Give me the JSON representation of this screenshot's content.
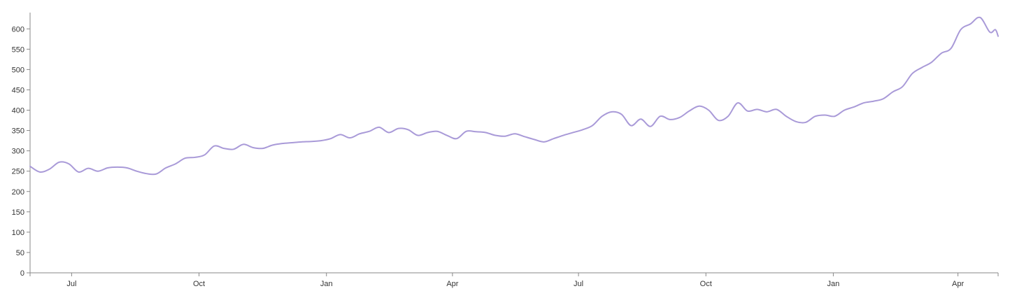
{
  "chart_data": {
    "type": "line",
    "title": "",
    "xlabel": "",
    "ylabel": "",
    "grid": false,
    "x_range": [
      "2023-06-01",
      "2025-04-30"
    ],
    "ylim": [
      0,
      640
    ],
    "y_ticks": [
      0,
      50,
      100,
      150,
      200,
      250,
      300,
      350,
      400,
      450,
      500,
      550,
      600
    ],
    "x_ticks": [
      {
        "date": "2023-07-01",
        "label": "Jul"
      },
      {
        "date": "2023-10-01",
        "label": "Oct"
      },
      {
        "date": "2024-01-01",
        "label": "Jan"
      },
      {
        "date": "2024-04-01",
        "label": "Apr"
      },
      {
        "date": "2024-07-01",
        "label": "Jul"
      },
      {
        "date": "2024-10-01",
        "label": "Oct"
      },
      {
        "date": "2025-01-01",
        "label": "Jan"
      },
      {
        "date": "2025-04-01",
        "label": "Apr"
      }
    ],
    "series": [
      {
        "color": "#a99ad8",
        "points": [
          [
            "2023-06-01",
            262
          ],
          [
            "2023-06-08",
            248
          ],
          [
            "2023-06-15",
            255
          ],
          [
            "2023-06-22",
            272
          ],
          [
            "2023-06-29",
            268
          ],
          [
            "2023-07-06",
            248
          ],
          [
            "2023-07-13",
            257
          ],
          [
            "2023-07-20",
            250
          ],
          [
            "2023-07-27",
            258
          ],
          [
            "2023-08-03",
            260
          ],
          [
            "2023-08-10",
            258
          ],
          [
            "2023-08-17",
            250
          ],
          [
            "2023-08-24",
            244
          ],
          [
            "2023-08-31",
            243
          ],
          [
            "2023-09-07",
            258
          ],
          [
            "2023-09-14",
            268
          ],
          [
            "2023-09-21",
            282
          ],
          [
            "2023-09-28",
            284
          ],
          [
            "2023-10-05",
            290
          ],
          [
            "2023-10-12",
            312
          ],
          [
            "2023-10-19",
            306
          ],
          [
            "2023-10-26",
            304
          ],
          [
            "2023-11-02",
            316
          ],
          [
            "2023-11-09",
            308
          ],
          [
            "2023-11-16",
            306
          ],
          [
            "2023-11-23",
            314
          ],
          [
            "2023-11-30",
            318
          ],
          [
            "2023-12-07",
            320
          ],
          [
            "2023-12-14",
            322
          ],
          [
            "2023-12-21",
            323
          ],
          [
            "2023-12-28",
            325
          ],
          [
            "2024-01-04",
            330
          ],
          [
            "2024-01-11",
            340
          ],
          [
            "2024-01-18",
            332
          ],
          [
            "2024-01-25",
            342
          ],
          [
            "2024-02-01",
            348
          ],
          [
            "2024-02-08",
            358
          ],
          [
            "2024-02-15",
            345
          ],
          [
            "2024-02-22",
            355
          ],
          [
            "2024-02-29",
            352
          ],
          [
            "2024-03-07",
            338
          ],
          [
            "2024-03-14",
            345
          ],
          [
            "2024-03-21",
            348
          ],
          [
            "2024-03-28",
            338
          ],
          [
            "2024-04-04",
            330
          ],
          [
            "2024-04-11",
            348
          ],
          [
            "2024-04-18",
            347
          ],
          [
            "2024-04-25",
            345
          ],
          [
            "2024-05-02",
            338
          ],
          [
            "2024-05-09",
            336
          ],
          [
            "2024-05-16",
            342
          ],
          [
            "2024-05-23",
            335
          ],
          [
            "2024-05-30",
            328
          ],
          [
            "2024-06-06",
            322
          ],
          [
            "2024-06-13",
            330
          ],
          [
            "2024-06-20",
            338
          ],
          [
            "2024-06-27",
            345
          ],
          [
            "2024-07-04",
            352
          ],
          [
            "2024-07-11",
            362
          ],
          [
            "2024-07-18",
            385
          ],
          [
            "2024-07-25",
            396
          ],
          [
            "2024-08-01",
            390
          ],
          [
            "2024-08-08",
            362
          ],
          [
            "2024-08-15",
            378
          ],
          [
            "2024-08-22",
            360
          ],
          [
            "2024-08-29",
            385
          ],
          [
            "2024-09-05",
            377
          ],
          [
            "2024-09-12",
            382
          ],
          [
            "2024-09-19",
            398
          ],
          [
            "2024-09-26",
            410
          ],
          [
            "2024-10-03",
            400
          ],
          [
            "2024-10-10",
            375
          ],
          [
            "2024-10-17",
            385
          ],
          [
            "2024-10-24",
            418
          ],
          [
            "2024-10-31",
            398
          ],
          [
            "2024-11-07",
            402
          ],
          [
            "2024-11-14",
            396
          ],
          [
            "2024-11-21",
            402
          ],
          [
            "2024-11-28",
            385
          ],
          [
            "2024-12-05",
            372
          ],
          [
            "2024-12-12",
            370
          ],
          [
            "2024-12-19",
            385
          ],
          [
            "2024-12-26",
            388
          ],
          [
            "2025-01-02",
            385
          ],
          [
            "2025-01-09",
            400
          ],
          [
            "2025-01-16",
            408
          ],
          [
            "2025-01-23",
            418
          ],
          [
            "2025-01-30",
            422
          ],
          [
            "2025-02-06",
            428
          ],
          [
            "2025-02-13",
            445
          ],
          [
            "2025-02-20",
            458
          ],
          [
            "2025-02-27",
            490
          ],
          [
            "2025-03-06",
            505
          ],
          [
            "2025-03-13",
            518
          ],
          [
            "2025-03-20",
            540
          ],
          [
            "2025-03-27",
            552
          ],
          [
            "2025-04-03",
            598
          ],
          [
            "2025-04-10",
            612
          ],
          [
            "2025-04-17",
            628
          ],
          [
            "2025-04-24",
            592
          ],
          [
            "2025-04-28",
            598
          ],
          [
            "2025-04-30",
            582
          ]
        ]
      }
    ]
  }
}
